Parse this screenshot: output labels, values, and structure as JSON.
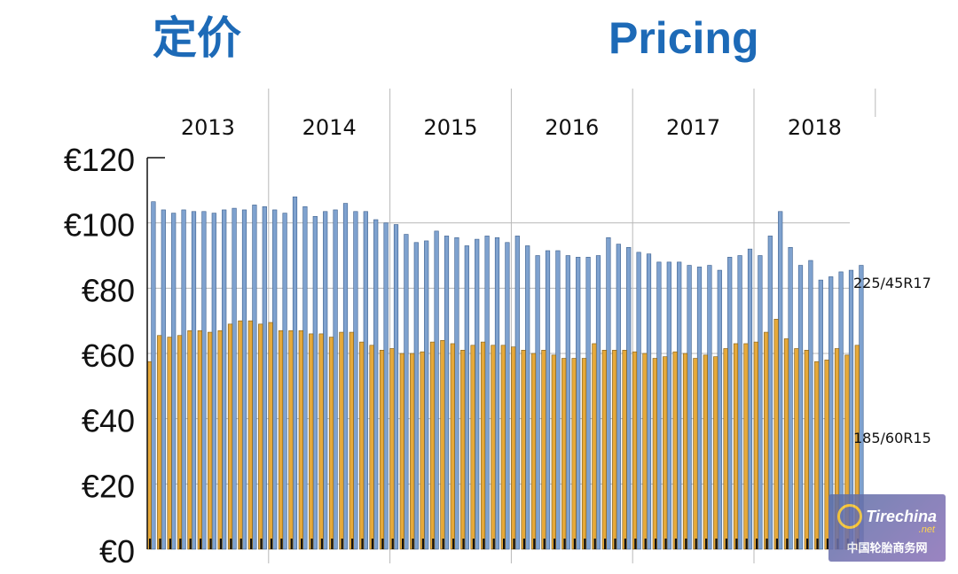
{
  "header": {
    "title_cn": "定价",
    "title_en": "Pricing"
  },
  "watermark": {
    "brand": "Tirechina",
    "domain": ".net",
    "cn": "中国轮胎商务网"
  },
  "colors": {
    "title": "#1d6ab7",
    "series_225": "#7fa2cf",
    "series_185": "#e6a93a",
    "grid": "#b8b8b8"
  },
  "chart_data": {
    "type": "bar",
    "y_tick_labels": [
      "€0",
      "€20",
      "€40",
      "€60",
      "€80",
      "€100",
      "€120"
    ],
    "y_ticks": [
      0,
      20,
      40,
      60,
      80,
      100,
      120
    ],
    "ylim": [
      0,
      120
    ],
    "years": [
      "2013",
      "2014",
      "2015",
      "2016",
      "2017",
      "2018"
    ],
    "periods_per_year": 12,
    "grid": true,
    "series": [
      {
        "name": "225/45R17",
        "values": [
          106.5,
          104,
          103,
          104,
          103.5,
          103.5,
          103,
          104,
          104.5,
          104,
          105.5,
          105,
          104,
          103,
          108,
          105,
          102,
          103.5,
          104,
          106,
          103.5,
          103.5,
          101,
          100,
          99.5,
          96.5,
          94,
          94.5,
          97.5,
          96,
          95.5,
          93,
          95,
          96,
          95.5,
          94,
          96,
          93,
          90,
          91.5,
          91.5,
          90,
          89.5,
          89.5,
          90,
          95.5,
          93.5,
          92.5,
          91,
          90.5,
          88,
          88,
          88,
          87,
          86.5,
          87,
          85.5,
          89.5,
          90,
          92,
          90,
          96,
          103.5,
          92.5,
          87,
          88.5,
          82.5,
          83.5,
          85,
          85.5,
          87
        ]
      },
      {
        "name": "185/60R15",
        "values": [
          57.5,
          65.5,
          65,
          65.5,
          67,
          67,
          66.5,
          67,
          69,
          70,
          70,
          69,
          69.5,
          67,
          67,
          67,
          66,
          66,
          65,
          66.5,
          66.5,
          63.5,
          62.5,
          61,
          61.5,
          60,
          60,
          60.5,
          63.5,
          64,
          63,
          61,
          62.5,
          63.5,
          62.5,
          62.5,
          62,
          61,
          60,
          61,
          59.5,
          58.5,
          58.5,
          58.5,
          63,
          61,
          61,
          61,
          60.5,
          60,
          58.5,
          59,
          60.5,
          60,
          58.5,
          59.5,
          59,
          61.5,
          63,
          63,
          63.5,
          66.5,
          70.5,
          64.5,
          61.5,
          61,
          57.5,
          58,
          61.5,
          59.5,
          62.5
        ]
      }
    ]
  }
}
